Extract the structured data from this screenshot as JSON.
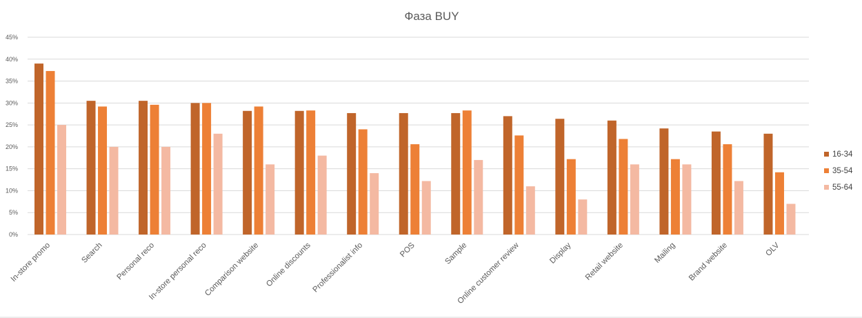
{
  "chart_data": {
    "type": "bar",
    "title": "Фаза BUY",
    "xlabel": "",
    "ylabel": "",
    "ylim": [
      0,
      45
    ],
    "yticks": [
      "0%",
      "5%",
      "10%",
      "15%",
      "20%",
      "25%",
      "30%",
      "35%",
      "40%",
      "45%"
    ],
    "grid": true,
    "legend_position": "right",
    "categories": [
      "In-store promo",
      "Search",
      "Personal reco",
      "In-store personal reco",
      "Comparison website",
      "Online discounts",
      "Professionalist info",
      "POS",
      "Sample",
      "Online customer review",
      "Display",
      "Retail website",
      "Mailing",
      "Brand website",
      "OLV"
    ],
    "series": [
      {
        "name": "16-34",
        "color": "#c0652a",
        "values": [
          39,
          30.5,
          30.5,
          30,
          28.2,
          28.2,
          27.7,
          27.7,
          27.7,
          27,
          26.4,
          26,
          24.2,
          23.5,
          23
        ]
      },
      {
        "name": "35-54",
        "color": "#ed8036",
        "values": [
          37.3,
          29.2,
          29.6,
          30,
          29.2,
          28.3,
          24,
          20.6,
          28.3,
          22.6,
          17.2,
          21.8,
          17.2,
          20.6,
          14.2
        ]
      },
      {
        "name": "55-64",
        "color": "#f4b9a2",
        "values": [
          25,
          20,
          20,
          23,
          16,
          18,
          14,
          12.2,
          17,
          11,
          8,
          16,
          16,
          12.2,
          7
        ]
      }
    ]
  }
}
